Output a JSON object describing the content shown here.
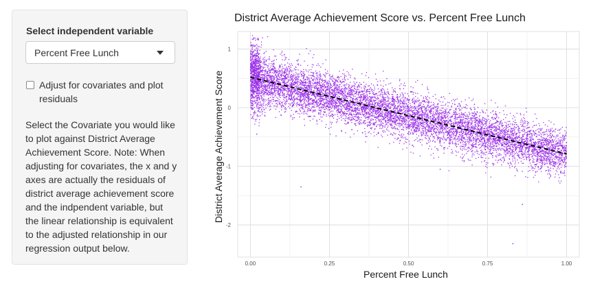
{
  "sidebar": {
    "select_label": "Select independent variable",
    "selected_variable": "Percent Free Lunch",
    "checkbox_label": "Adjust for covariates and plot residuals",
    "checkbox_checked": false,
    "help_text": "Select the Covariate you would like to plot against District Average Achievement Score. Note: When adjusting for covariates, the x and y axes are actually the residuals of district average achievement score and the indpendent variable, but the linear relationship is equivalent to the adjusted relationship in our regression output below."
  },
  "colors": {
    "points": "#9b30e8",
    "trend_line": "#000000",
    "grid": "#e6e6e6"
  },
  "chart_data": {
    "type": "scatter",
    "title": "District Average Achievement Score vs. Percent Free Lunch",
    "xlabel": "Percent Free Lunch",
    "ylabel": "District Average Achievement Score",
    "x_ticks": [
      "0.00",
      "0.25",
      "0.50",
      "0.75",
      "1.00"
    ],
    "y_ticks": [
      "-2",
      "-1",
      "0",
      "1"
    ],
    "xlim": [
      -0.04,
      1.04
    ],
    "ylim": [
      -2.55,
      1.3
    ],
    "grid": true,
    "trend_line": {
      "style": "dashed",
      "x": [
        0.0,
        1.0
      ],
      "y": [
        0.52,
        -0.79
      ]
    },
    "point_cloud": {
      "n_points": 9000,
      "x_range": [
        0.0,
        1.0
      ],
      "trend_intercept": 0.52,
      "trend_slope": -1.31,
      "residual_sd": 0.2,
      "notable_outliers": [
        [
          0.83,
          -2.32
        ],
        [
          0.86,
          -1.65
        ],
        [
          0.16,
          -1.35
        ],
        [
          0.6,
          -1.05
        ],
        [
          0.02,
          -0.45
        ]
      ]
    }
  }
}
